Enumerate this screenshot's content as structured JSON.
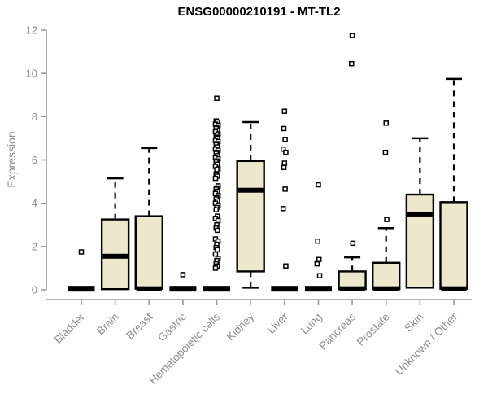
{
  "title": "ENSG00000210191 - MT-TL2",
  "colors": {
    "background": "#FFFFFF",
    "box_fill": "#EDE7CC",
    "box_stroke": "#000000",
    "median": "#000000",
    "axis": "#999999",
    "tick_text": "#8C8C8C",
    "title_text": "#000000",
    "outlier_fill": "#FFFFFF",
    "outlier_stroke": "#000000"
  },
  "chart_data": {
    "type": "boxplot",
    "title": "ENSG00000210191 - MT-TL2",
    "xlabel": "",
    "ylabel": "Expression",
    "ylim": [
      0,
      12
    ],
    "yticks": [
      0,
      2,
      4,
      6,
      8,
      10,
      12
    ],
    "grid": false,
    "legend": "none",
    "categories": [
      "Bladder",
      "Brain",
      "Breast",
      "Gastric",
      "Hematopoietic cells",
      "Kidney",
      "Liver",
      "Lung",
      "Pancreas",
      "Prostate",
      "Skin",
      "Unknown / Other"
    ],
    "series": [
      {
        "label": "Bladder",
        "flat": true,
        "q1": 0,
        "median": 0.05,
        "q3": 0,
        "whisker_low": 0,
        "whisker_high": 0,
        "outliers": [
          1.75
        ]
      },
      {
        "label": "Brain",
        "flat": false,
        "q1": 0.03,
        "median": 1.55,
        "q3": 3.25,
        "whisker_low": 0.03,
        "whisker_high": 5.15,
        "outliers": []
      },
      {
        "label": "Breast",
        "flat": false,
        "q1": 0.05,
        "median": 0.05,
        "q3": 3.4,
        "whisker_low": 0.05,
        "whisker_high": 6.55,
        "outliers": []
      },
      {
        "label": "Gastric",
        "flat": true,
        "q1": 0,
        "median": 0.05,
        "q3": 0,
        "whisker_low": 0,
        "whisker_high": 0,
        "outliers": [
          0.7
        ]
      },
      {
        "label": "Hematopoietic cells",
        "flat": true,
        "q1": 0,
        "median": 0.05,
        "q3": 0,
        "whisker_low": 0,
        "whisker_high": 0,
        "outliers": [
          8.85,
          7.8,
          7.75,
          7.65,
          7.6,
          7.5,
          7.45,
          7.35,
          7.3,
          7.2,
          7.15,
          7.05,
          7.0,
          6.9,
          6.85,
          6.75,
          6.7,
          6.6,
          6.5,
          6.45,
          6.35,
          6.3,
          6.2,
          6.1,
          6.05,
          5.95,
          5.9,
          5.8,
          5.7,
          5.6,
          5.55,
          5.35,
          5.25,
          5.15,
          4.8,
          4.7,
          4.65,
          4.55,
          4.45,
          4.35,
          4.25,
          4.2,
          4.1,
          4.0,
          3.9,
          3.8,
          3.7,
          3.4,
          3.3,
          3.2,
          3.0,
          2.85,
          2.75,
          2.35,
          2.25,
          2.1,
          1.95,
          1.85,
          1.65,
          1.45,
          1.35,
          1.2,
          1.1,
          1.0
        ]
      },
      {
        "label": "Kidney",
        "flat": false,
        "q1": 0.85,
        "median": 4.6,
        "q3": 5.95,
        "whisker_low": 0.1,
        "whisker_high": 7.75,
        "outliers": []
      },
      {
        "label": "Liver",
        "flat": true,
        "q1": 0,
        "median": 0.05,
        "q3": 0,
        "whisker_low": 0,
        "whisker_high": 0,
        "outliers": [
          8.25,
          7.45,
          6.95,
          6.5,
          6.35,
          5.85,
          5.65,
          4.65,
          3.75,
          1.1
        ]
      },
      {
        "label": "Lung",
        "flat": true,
        "q1": 0,
        "median": 0.05,
        "q3": 0,
        "whisker_low": 0,
        "whisker_high": 0,
        "outliers": [
          4.85,
          2.25,
          1.4,
          1.2,
          0.65
        ]
      },
      {
        "label": "Pancreas",
        "flat": false,
        "q1": 0.03,
        "median": 0.05,
        "q3": 0.85,
        "whisker_low": 0.03,
        "whisker_high": 1.5,
        "outliers": [
          11.75,
          10.45,
          2.15
        ]
      },
      {
        "label": "Prostate",
        "flat": false,
        "q1": 0.03,
        "median": 0.05,
        "q3": 1.25,
        "whisker_low": 0.03,
        "whisker_high": 2.85,
        "outliers": [
          7.7,
          6.35,
          3.25
        ]
      },
      {
        "label": "Skin",
        "flat": false,
        "q1": 0.1,
        "median": 3.5,
        "q3": 4.4,
        "whisker_low": 0.1,
        "whisker_high": 7.0,
        "outliers": []
      },
      {
        "label": "Unknown / Other",
        "flat": false,
        "q1": 0.05,
        "median": 0.05,
        "q3": 4.05,
        "whisker_low": 0.05,
        "whisker_high": 9.75,
        "outliers": []
      }
    ]
  }
}
